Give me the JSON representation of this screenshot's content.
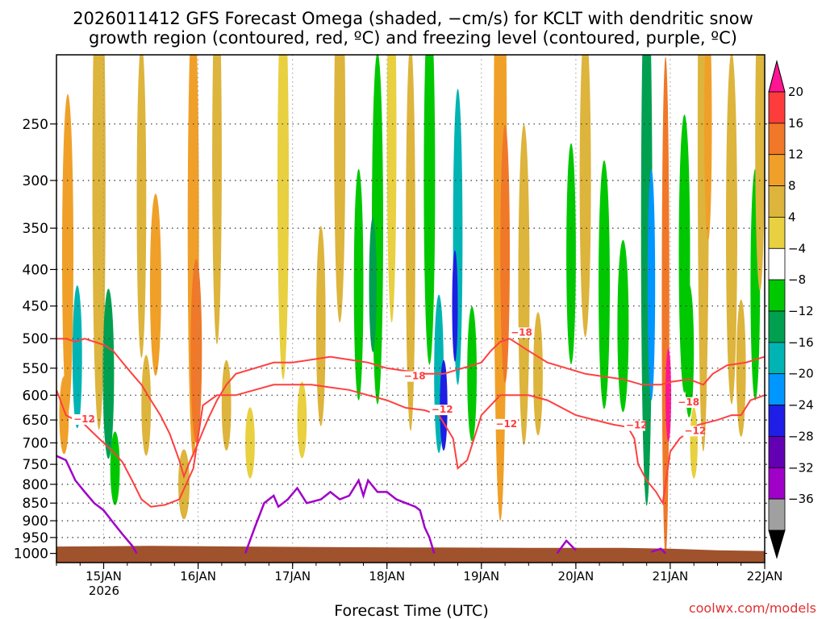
{
  "chart_data": {
    "type": "heatmap",
    "title_line1": "2026011412 GFS Forecast Omega (shaded, −cm/s) for KCLT with dendritic snow",
    "title_line2": "growth region (contoured, red, ºC) and freezing level (contoured, purple, ºC)",
    "xlabel": "Forecast Time (UTC)",
    "credit": "coolwx.com/models",
    "x_ticks": [
      "15JAN",
      "16JAN",
      "17JAN",
      "18JAN",
      "19JAN",
      "20JAN",
      "21JAN",
      "22JAN"
    ],
    "x_tick_days": [
      15,
      16,
      17,
      18,
      19,
      20,
      21,
      22
    ],
    "x_year_label": "2026",
    "x_range_days": [
      14.5,
      22.0
    ],
    "y_ticks": [
      250,
      300,
      350,
      400,
      450,
      500,
      550,
      600,
      650,
      700,
      750,
      800,
      850,
      900,
      950,
      1000
    ],
    "y_tick_labels": [
      "250",
      "300",
      "350",
      "400",
      "450",
      "500",
      "550",
      "600",
      "650",
      "700",
      "750",
      "800",
      "850",
      "900",
      "950",
      "1000"
    ],
    "y_range_hpa": [
      200,
      1030
    ],
    "colorbar": {
      "levels": [
        "20",
        "16",
        "12",
        "8",
        "4",
        "−4",
        "−8",
        "−12",
        "−16",
        "−20",
        "−24",
        "−28",
        "−32",
        "−36"
      ],
      "colors": [
        "#ff1493",
        "#ff3c3c",
        "#f07828",
        "#f0a028",
        "#ddb43c",
        "#e8d040",
        "#ffffff",
        "#00c800",
        "#00a050",
        "#00b4b4",
        "#0096ff",
        "#1e1ee6",
        "#6400b4",
        "#a000c8",
        "#a0a0a0",
        "#000000"
      ]
    },
    "contour_labels": [
      {
        "text": "−12",
        "day": 14.68,
        "p": 655
      },
      {
        "text": "−18",
        "day": 18.18,
        "p": 570
      },
      {
        "text": "−12",
        "day": 18.47,
        "p": 635
      },
      {
        "text": "−18",
        "day": 19.31,
        "p": 495
      },
      {
        "text": "−12",
        "day": 19.15,
        "p": 665
      },
      {
        "text": "−12",
        "day": 20.53,
        "p": 668
      },
      {
        "text": "−18",
        "day": 21.08,
        "p": 620
      },
      {
        "text": "−12",
        "day": 21.15,
        "p": 680
      }
    ],
    "dgz_warm_edge_minus12": [
      [
        14.5,
        590
      ],
      [
        14.6,
        640
      ],
      [
        14.7,
        650
      ],
      [
        14.8,
        660
      ],
      [
        14.9,
        680
      ],
      [
        15.0,
        700
      ],
      [
        15.1,
        720
      ],
      [
        15.2,
        745
      ],
      [
        15.3,
        790
      ],
      [
        15.4,
        840
      ],
      [
        15.5,
        860
      ],
      [
        15.65,
        855
      ],
      [
        15.8,
        840
      ],
      [
        15.95,
        760
      ],
      [
        16.05,
        620
      ],
      [
        16.2,
        600
      ],
      [
        16.4,
        600
      ],
      [
        16.6,
        590
      ],
      [
        16.8,
        580
      ],
      [
        17.0,
        580
      ],
      [
        17.2,
        580
      ],
      [
        17.4,
        585
      ],
      [
        17.6,
        590
      ],
      [
        17.8,
        600
      ],
      [
        18.0,
        610
      ],
      [
        18.2,
        625
      ],
      [
        18.4,
        630
      ],
      [
        18.55,
        640
      ],
      [
        18.7,
        690
      ],
      [
        18.75,
        760
      ],
      [
        18.85,
        740
      ],
      [
        19.0,
        640
      ],
      [
        19.2,
        600
      ],
      [
        19.5,
        600
      ],
      [
        19.7,
        610
      ],
      [
        20.0,
        640
      ],
      [
        20.2,
        650
      ],
      [
        20.4,
        660
      ],
      [
        20.55,
        665
      ],
      [
        20.62,
        690
      ],
      [
        20.66,
        750
      ],
      [
        20.75,
        790
      ],
      [
        20.85,
        820
      ],
      [
        20.92,
        850
      ],
      [
        21.0,
        720
      ],
      [
        21.1,
        690
      ],
      [
        21.3,
        660
      ],
      [
        21.5,
        650
      ],
      [
        21.65,
        640
      ],
      [
        21.75,
        640
      ],
      [
        21.85,
        610
      ],
      [
        22.0,
        600
      ]
    ],
    "dgz_cold_edge_minus18": [
      [
        14.5,
        500
      ],
      [
        14.6,
        500
      ],
      [
        14.7,
        505
      ],
      [
        14.8,
        500
      ],
      [
        14.9,
        505
      ],
      [
        15.0,
        510
      ],
      [
        15.1,
        520
      ],
      [
        15.2,
        540
      ],
      [
        15.3,
        560
      ],
      [
        15.4,
        580
      ],
      [
        15.5,
        610
      ],
      [
        15.6,
        640
      ],
      [
        15.7,
        680
      ],
      [
        15.8,
        740
      ],
      [
        15.85,
        780
      ],
      [
        15.9,
        750
      ],
      [
        16.0,
        700
      ],
      [
        16.1,
        650
      ],
      [
        16.2,
        610
      ],
      [
        16.3,
        580
      ],
      [
        16.4,
        560
      ],
      [
        16.6,
        550
      ],
      [
        16.8,
        540
      ],
      [
        17.0,
        540
      ],
      [
        17.2,
        535
      ],
      [
        17.4,
        530
      ],
      [
        17.6,
        535
      ],
      [
        17.8,
        540
      ],
      [
        18.0,
        550
      ],
      [
        18.2,
        555
      ],
      [
        18.4,
        560
      ],
      [
        18.6,
        560
      ],
      [
        18.8,
        550
      ],
      [
        19.0,
        540
      ],
      [
        19.1,
        520
      ],
      [
        19.2,
        505
      ],
      [
        19.3,
        500
      ],
      [
        19.5,
        520
      ],
      [
        19.7,
        540
      ],
      [
        19.9,
        550
      ],
      [
        20.1,
        560
      ],
      [
        20.3,
        565
      ],
      [
        20.5,
        570
      ],
      [
        20.7,
        580
      ],
      [
        20.9,
        580
      ],
      [
        21.0,
        575
      ],
      [
        21.2,
        570
      ],
      [
        21.35,
        580
      ],
      [
        21.45,
        560
      ],
      [
        21.6,
        545
      ],
      [
        21.8,
        540
      ],
      [
        22.0,
        530
      ]
    ],
    "freezing_level_segments": [
      [
        [
          14.5,
          730
        ],
        [
          14.6,
          740
        ],
        [
          14.7,
          790
        ],
        [
          14.8,
          820
        ],
        [
          14.9,
          850
        ],
        [
          15.0,
          870
        ],
        [
          15.1,
          905
        ],
        [
          15.2,
          940
        ],
        [
          15.3,
          975
        ],
        [
          15.35,
          1000
        ]
      ],
      [
        [
          16.5,
          1000
        ],
        [
          16.6,
          920
        ],
        [
          16.7,
          850
        ],
        [
          16.8,
          830
        ],
        [
          16.85,
          860
        ],
        [
          16.95,
          840
        ],
        [
          17.05,
          810
        ],
        [
          17.15,
          850
        ],
        [
          17.3,
          840
        ],
        [
          17.4,
          820
        ],
        [
          17.5,
          840
        ],
        [
          17.6,
          830
        ],
        [
          17.7,
          790
        ],
        [
          17.75,
          830
        ],
        [
          17.8,
          790
        ],
        [
          17.9,
          820
        ],
        [
          18.0,
          820
        ],
        [
          18.1,
          840
        ],
        [
          18.2,
          850
        ],
        [
          18.3,
          860
        ],
        [
          18.35,
          870
        ],
        [
          18.4,
          920
        ],
        [
          18.45,
          950
        ],
        [
          18.5,
          1000
        ]
      ],
      [
        [
          19.8,
          1000
        ],
        [
          19.9,
          960
        ],
        [
          20.0,
          990
        ]
      ],
      [
        [
          20.8,
          995
        ],
        [
          20.9,
          985
        ],
        [
          20.95,
          1000
        ]
      ]
    ]
  }
}
